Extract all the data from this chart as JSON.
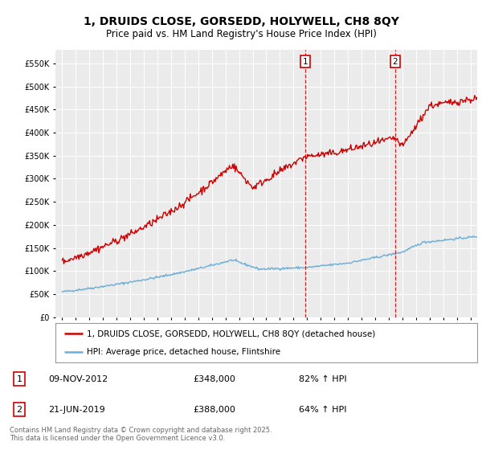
{
  "title": "1, DRUIDS CLOSE, GORSEDD, HOLYWELL, CH8 8QY",
  "subtitle": "Price paid vs. HM Land Registry's House Price Index (HPI)",
  "legend_line1": "1, DRUIDS CLOSE, GORSEDD, HOLYWELL, CH8 8QY (detached house)",
  "legend_line2": "HPI: Average price, detached house, Flintshire",
  "transaction1_label": "1",
  "transaction1_date": "09-NOV-2012",
  "transaction1_price": "£348,000",
  "transaction1_hpi": "82% ↑ HPI",
  "transaction1_year": 2012.86,
  "transaction1_value": 348000,
  "transaction2_label": "2",
  "transaction2_date": "21-JUN-2019",
  "transaction2_price": "£388,000",
  "transaction2_hpi": "64% ↑ HPI",
  "transaction2_year": 2019.47,
  "transaction2_value": 388000,
  "hpi_color": "#6baed6",
  "price_color": "#cc0000",
  "vline_color": "#cc0000",
  "footer": "Contains HM Land Registry data © Crown copyright and database right 2025.\nThis data is licensed under the Open Government Licence v3.0.",
  "ylim_min": 0,
  "ylim_max": 580000,
  "yticks": [
    0,
    50000,
    100000,
    150000,
    200000,
    250000,
    300000,
    350000,
    400000,
    450000,
    500000,
    550000
  ],
  "xlim_min": 1994.5,
  "xlim_max": 2025.5,
  "background_color": "#ffffff",
  "plot_bg_color": "#ebebeb"
}
